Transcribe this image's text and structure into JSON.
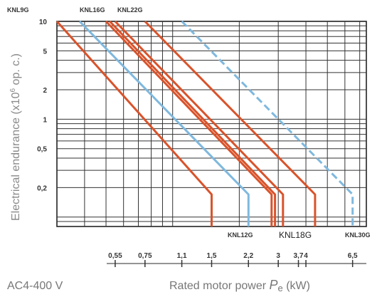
{
  "chart_data": {
    "type": "line",
    "title": "",
    "ylabel": "Electrical endurance (x10⁶ op. c.)",
    "ylabel_parts": {
      "before": "Electrical endurance (x10",
      "sup": "6",
      "after": " op. c.)"
    },
    "xlabel_parts": {
      "before": "Rated motor power ",
      "symbol": "P",
      "sub": "e",
      "after": " (kW)"
    },
    "xlabel": "Rated motor power Pe (kW)",
    "condition": "AC4-400 V",
    "xscale": "log",
    "yscale": "log",
    "xlim": [
      0.3,
      7.5
    ],
    "ylim": [
      0.08,
      10
    ],
    "x_ticks": [
      0.55,
      0.75,
      1.1,
      1.5,
      2.2,
      3,
      3.7,
      4,
      6.5
    ],
    "x_tick_labels": [
      "0,55",
      "0,75",
      "1,1",
      "1,5",
      "2,2",
      "3",
      "3,7",
      "4",
      "6,5"
    ],
    "y_ticks": [
      10,
      5,
      2,
      1,
      0.5,
      0.2
    ],
    "y_tick_labels": [
      "10",
      "5",
      "2",
      "1",
      "0,5",
      "0,2"
    ],
    "grid": true,
    "series": [
      {
        "name": "KNL9G",
        "color": "#d9532b",
        "style": "solid",
        "points": [
          [
            0.3,
            10
          ],
          [
            1.5,
            0.17
          ],
          [
            1.5,
            0.08
          ]
        ]
      },
      {
        "name": "KNL12G",
        "color": "#7fb8de",
        "style": "solid",
        "points": [
          [
            0.38,
            10
          ],
          [
            2.2,
            0.17
          ],
          [
            2.2,
            0.08
          ]
        ]
      },
      {
        "name": "KNL16G",
        "color": "#d9532b",
        "style": "solid",
        "points": [
          [
            0.5,
            10
          ],
          [
            2.8,
            0.17
          ],
          [
            2.8,
            0.08
          ]
        ]
      },
      {
        "name": "",
        "color": "#d9532b",
        "style": "solid",
        "points": [
          [
            0.52,
            10
          ],
          [
            2.9,
            0.17
          ],
          [
            2.9,
            0.08
          ]
        ]
      },
      {
        "name": "KNL18G",
        "color": "#d9532b",
        "style": "solid",
        "points": [
          [
            0.55,
            10
          ],
          [
            3.15,
            0.17
          ],
          [
            3.15,
            0.08
          ]
        ]
      },
      {
        "name": "KNL22G",
        "color": "#d9532b",
        "style": "solid",
        "points": [
          [
            0.75,
            10
          ],
          [
            4.4,
            0.17
          ],
          [
            4.4,
            0.08
          ]
        ]
      },
      {
        "name": "KNL30G",
        "color": "#7fb8de",
        "style": "dashed",
        "points": [
          [
            1.1,
            10
          ],
          [
            6.5,
            0.17
          ],
          [
            6.5,
            0.08
          ]
        ]
      }
    ],
    "series_labels": {
      "top": [
        "KNL9G",
        "KNL16G",
        "KNL22G"
      ],
      "bottom": [
        "KNL12G",
        "KNL18G",
        "KNL30G"
      ]
    }
  }
}
